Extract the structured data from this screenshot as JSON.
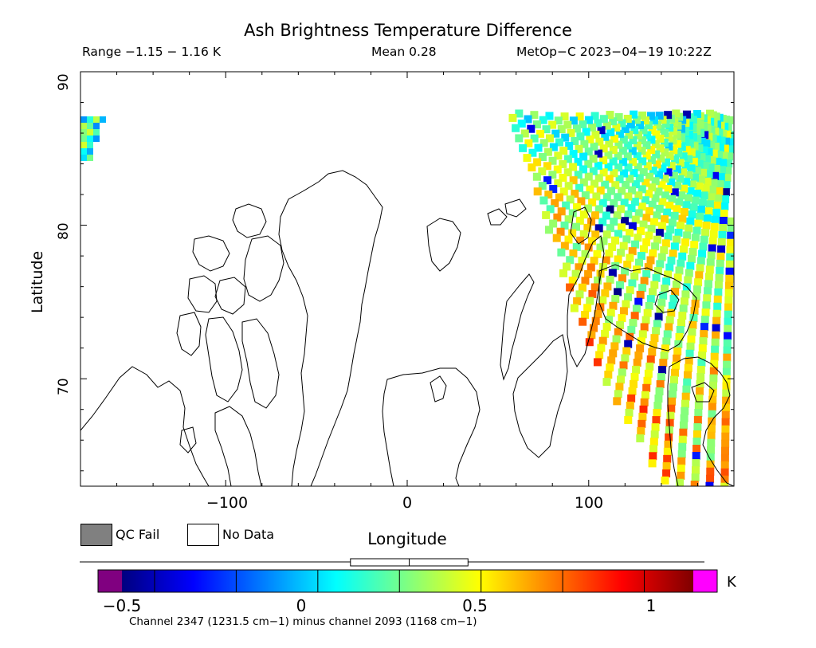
{
  "title": "Ash Brightness Temperature Difference",
  "header": {
    "range": "Range −1.15 − 1.16 K",
    "mean": "Mean 0.28",
    "source": "MetOp−C 2023−04−19 10:22Z"
  },
  "map_data": {
    "type": "swath-map",
    "xlabel": "Longitude",
    "ylabel": "Latitude",
    "xlim": [
      -180,
      180
    ],
    "ylim": [
      63,
      90
    ],
    "xticks": [
      -100,
      0,
      100
    ],
    "xtick_labels": [
      "−100",
      "0",
      "100"
    ],
    "yticks": [
      70,
      80,
      90
    ],
    "ytick_labels": [
      "70",
      "80",
      "90"
    ],
    "value_range": [
      -1.15,
      1.16
    ],
    "mean": 0.28,
    "units": "K"
  },
  "legend": {
    "qc_fail": "QC Fail",
    "no_data": "No Data",
    "qc_fail_color": "#808080",
    "no_data_color": "#ffffff"
  },
  "colorbar": {
    "min": -0.6,
    "max": 1.15,
    "ticks": [
      -0.5,
      0,
      0.5,
      1
    ],
    "tick_labels": [
      "−0.5",
      "0",
      "0.5",
      "1"
    ],
    "units": "K",
    "under_color": "#800080",
    "over_color": "#ff00ff",
    "colors": [
      "#00007f",
      "#0000ff",
      "#0080ff",
      "#00ffff",
      "#80ff80",
      "#ffff00",
      "#ff8000",
      "#ff0000",
      "#7f0000"
    ]
  },
  "footer": "Channel 2347 (1231.5 cm−1) minus channel 2093 (1168 cm−1)"
}
